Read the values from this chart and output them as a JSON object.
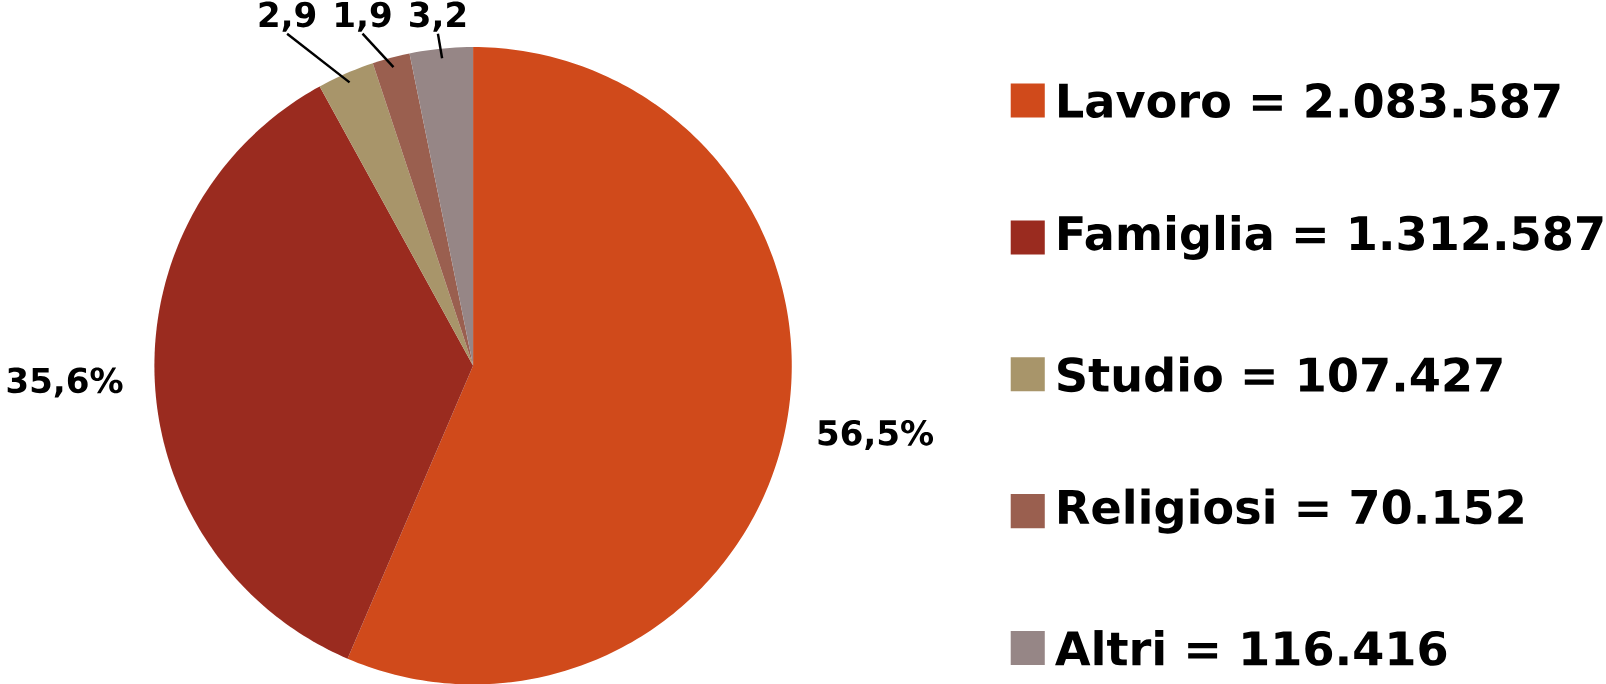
{
  "chart_data": {
    "type": "pie",
    "categories": [
      "Lavoro = 2.083.587",
      "Famiglia = 1.312.587",
      "Studio = 107.427",
      "Religiosi = 70.152",
      "Altri = 116.416"
    ],
    "values": [
      56.5,
      35.6,
      2.9,
      1.9,
      3.2
    ],
    "value_labels": [
      "56,5%",
      "35,6%",
      "2,9",
      "1,9",
      "3,2"
    ],
    "colors": [
      "#d04a1b",
      "#9a2b1f",
      "#a8956a",
      "#9a5f4f",
      "#968686"
    ],
    "legend": "right"
  }
}
